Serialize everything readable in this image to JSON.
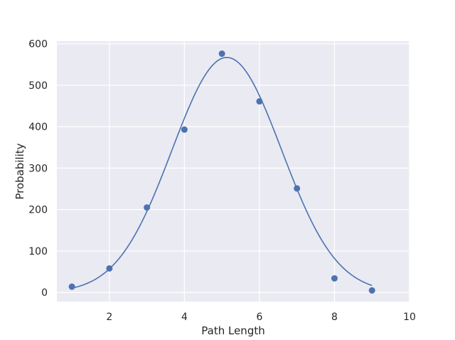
{
  "chart_data": {
    "type": "scatter",
    "title": "",
    "xlabel": "Path Length",
    "ylabel": "Probability",
    "xlim": [
      0.6,
      10
    ],
    "ylim": [
      -22,
      606
    ],
    "x_ticks": [
      2,
      4,
      6,
      8,
      10
    ],
    "y_ticks": [
      0,
      100,
      200,
      300,
      400,
      500,
      600
    ],
    "grid": true,
    "legend": "none",
    "background_color": "#eaeaf2",
    "grid_color": "#ffffff",
    "series": [
      {
        "kind": "scatter",
        "color": "#4c72b0",
        "x": [
          1,
          2,
          3,
          4,
          5,
          6,
          7,
          8,
          9
        ],
        "y": [
          14,
          58,
          205,
          393,
          576,
          461,
          251,
          34,
          5
        ]
      },
      {
        "kind": "line",
        "color": "#4c72b0",
        "fit": "gaussian",
        "amplitude": 567,
        "mean": 5.13,
        "sigma": 1.46,
        "x_range": [
          1,
          9
        ]
      }
    ]
  }
}
